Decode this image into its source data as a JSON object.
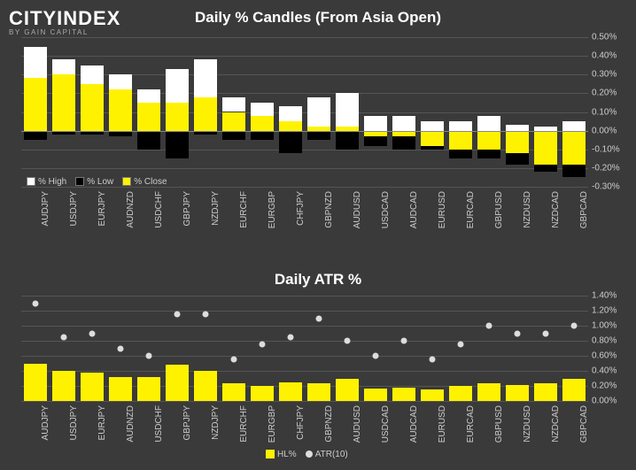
{
  "logo": {
    "part1": "CITY",
    "part2": "INDEX",
    "sub": "BY GAIN CAPITAL"
  },
  "chart1": {
    "title": "Daily % Candles (From Asia Open)",
    "type": "candle-bar",
    "background": "#3a3a3a",
    "grid_color": "#555555",
    "axis_color": "#888888",
    "text_color": "#cccccc",
    "colors": {
      "high": "#ffffff",
      "low": "#000000",
      "close": "#fff200"
    },
    "ylim": [
      -0.3,
      0.5
    ],
    "ytick_step": 0.1,
    "y_format": "pct2",
    "categories": [
      "AUDJPY",
      "USDJPY",
      "EURJPY",
      "AUDNZD",
      "USDCHF",
      "GBPJPY",
      "NZDJPY",
      "EURCHF",
      "EURGBP",
      "CHFJPY",
      "GBPNZD",
      "AUDUSD",
      "USDCAD",
      "AUDCAD",
      "EURUSD",
      "EURCAD",
      "GBPUSD",
      "NZDUSD",
      "NZDCAD",
      "GBPCAD"
    ],
    "series": {
      "high": [
        0.45,
        0.38,
        0.35,
        0.3,
        0.22,
        0.33,
        0.38,
        0.18,
        0.15,
        0.13,
        0.18,
        0.2,
        0.08,
        0.08,
        0.05,
        0.05,
        0.08,
        0.03,
        0.02,
        0.05
      ],
      "low": [
        -0.05,
        -0.02,
        -0.02,
        -0.03,
        -0.1,
        -0.15,
        -0.02,
        -0.05,
        -0.05,
        -0.12,
        -0.05,
        -0.1,
        -0.08,
        -0.1,
        -0.1,
        -0.15,
        -0.15,
        -0.18,
        -0.22,
        -0.25
      ],
      "close": [
        0.28,
        0.3,
        0.25,
        0.22,
        0.15,
        0.15,
        0.18,
        0.1,
        0.08,
        0.05,
        0.02,
        0.02,
        -0.03,
        -0.03,
        -0.08,
        -0.1,
        -0.1,
        -0.12,
        -0.18,
        -0.18
      ]
    },
    "legend": [
      {
        "label": "% High",
        "color": "#ffffff"
      },
      {
        "label": "% Low",
        "color": "#000000"
      },
      {
        "label": "% Close",
        "color": "#fff200"
      }
    ]
  },
  "chart2": {
    "title": "Daily ATR %",
    "type": "bar+marker",
    "background": "#3a3a3a",
    "grid_color": "#555555",
    "text_color": "#cccccc",
    "bar_color": "#fff200",
    "marker_color": "#dddddd",
    "ylim": [
      0,
      1.4
    ],
    "ytick_step": 0.2,
    "y_format": "pct2",
    "categories": [
      "AUDJPY",
      "USDJPY",
      "EURJPY",
      "AUDNZD",
      "USDCHF",
      "GBPJPY",
      "NZDJPY",
      "EURCHF",
      "EURGBP",
      "CHFJPY",
      "GBPNZD",
      "AUDUSD",
      "USDCAD",
      "AUDCAD",
      "EURUSD",
      "EURCAD",
      "GBPUSD",
      "NZDUSD",
      "NZDCAD",
      "GBPCAD"
    ],
    "series": {
      "hl": [
        0.5,
        0.4,
        0.38,
        0.32,
        0.32,
        0.48,
        0.4,
        0.23,
        0.2,
        0.25,
        0.23,
        0.3,
        0.16,
        0.18,
        0.15,
        0.2,
        0.23,
        0.21,
        0.24,
        0.3
      ],
      "atr": [
        1.3,
        0.85,
        0.9,
        0.7,
        0.6,
        1.15,
        1.15,
        0.55,
        0.75,
        0.85,
        1.1,
        0.8,
        0.6,
        0.8,
        0.55,
        0.75,
        1.0,
        0.9,
        0.9,
        1.0
      ]
    },
    "legend": [
      {
        "label": "HL%",
        "type": "sw",
        "color": "#fff200"
      },
      {
        "label": "ATR(10)",
        "type": "dot",
        "color": "#dddddd"
      }
    ]
  }
}
